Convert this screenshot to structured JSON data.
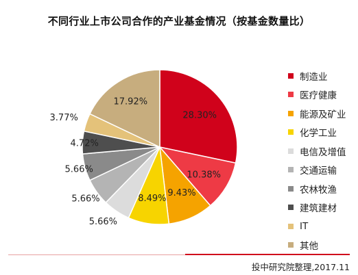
{
  "chart_data": {
    "type": "pie",
    "title": "不同行业上市公司合作的产业基金情况（按基金数量比）",
    "slices": [
      {
        "label": "制造业",
        "value": 28.3,
        "display": "28.30%",
        "color": "#d0021b"
      },
      {
        "label": "医疗健康",
        "value": 10.38,
        "display": "10.38%",
        "color": "#ee3a45"
      },
      {
        "label": "能源及矿业",
        "value": 9.43,
        "display": "9.43%",
        "color": "#f5a300"
      },
      {
        "label": "化学工业",
        "value": 8.49,
        "display": "8.49%",
        "color": "#f7d400"
      },
      {
        "label": "电信及增值",
        "value": 5.66,
        "display": "5.66%",
        "color": "#dcdcdc"
      },
      {
        "label": "交通运输",
        "value": 5.66,
        "display": "5.66%",
        "color": "#b4b4b4"
      },
      {
        "label": "农林牧渔",
        "value": 5.66,
        "display": "5.66%",
        "color": "#8a8a8a"
      },
      {
        "label": "建筑建材",
        "value": 4.72,
        "display": "4.72%",
        "color": "#4e4e4e"
      },
      {
        "label": "IT",
        "value": 3.77,
        "display": "3.77%",
        "color": "#e4c27a"
      },
      {
        "label": "其他",
        "value": 17.92,
        "display": "17.92%",
        "color": "#c7ad7e"
      }
    ],
    "legend_position": "right"
  },
  "source": "投中研究院整理,2017.11"
}
